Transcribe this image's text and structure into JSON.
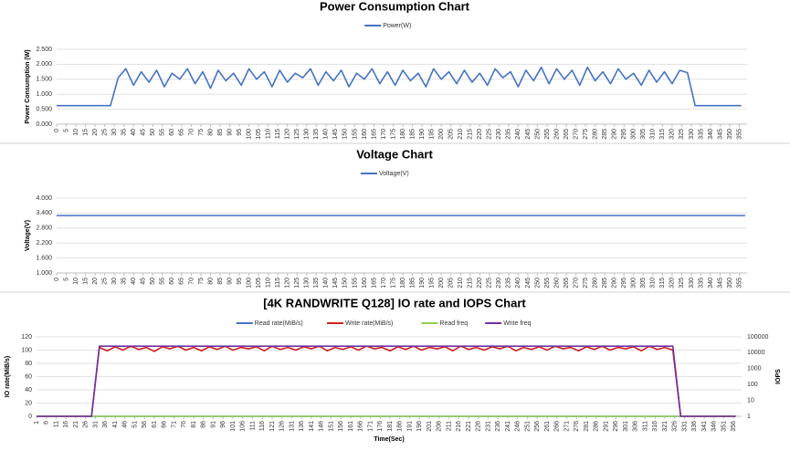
{
  "chart_data": [
    {
      "type": "line",
      "title": "Power Consumption Chart",
      "y_label": "Power Consumption (W)",
      "legend": "top",
      "grid": true,
      "xlim": [
        0,
        359
      ],
      "ylim": [
        0,
        2.5
      ],
      "xticks": [
        0,
        5,
        10,
        15,
        20,
        25,
        30,
        35,
        40,
        45,
        50,
        55,
        60,
        65,
        70,
        75,
        80,
        85,
        90,
        95,
        100,
        105,
        110,
        115,
        120,
        125,
        130,
        135,
        140,
        145,
        150,
        155,
        160,
        165,
        170,
        175,
        180,
        185,
        190,
        195,
        200,
        205,
        210,
        215,
        220,
        225,
        230,
        235,
        240,
        245,
        250,
        255,
        260,
        265,
        270,
        275,
        280,
        285,
        290,
        295,
        300,
        305,
        310,
        315,
        320,
        325,
        330,
        335,
        340,
        345,
        350,
        355
      ],
      "yticks": [
        {
          "value": 0,
          "label": "0.000"
        },
        {
          "value": 0.5,
          "label": "0.500"
        },
        {
          "value": 1,
          "label": "1.000"
        },
        {
          "value": 1.5,
          "label": "1.500"
        },
        {
          "value": 2,
          "label": "2.000"
        },
        {
          "value": 2.5,
          "label": "2.500"
        }
      ],
      "x": [
        0,
        4,
        8,
        12,
        16,
        20,
        24,
        28,
        32,
        36,
        40,
        44,
        48,
        52,
        56,
        60,
        64,
        68,
        72,
        76,
        80,
        84,
        88,
        92,
        96,
        100,
        104,
        108,
        112,
        116,
        120,
        124,
        128,
        132,
        136,
        140,
        144,
        148,
        152,
        156,
        160,
        164,
        168,
        172,
        176,
        180,
        184,
        188,
        192,
        196,
        200,
        204,
        208,
        212,
        216,
        220,
        224,
        228,
        232,
        236,
        240,
        244,
        248,
        252,
        256,
        260,
        264,
        268,
        272,
        276,
        280,
        284,
        288,
        292,
        296,
        300,
        304,
        308,
        312,
        316,
        320,
        324,
        328,
        332,
        336,
        340,
        344,
        348,
        352,
        356
      ],
      "series": [
        {
          "name": "Power(W)",
          "color": "#4472c4",
          "values": [
            0.62,
            0.62,
            0.62,
            0.62,
            0.62,
            0.62,
            0.62,
            0.62,
            1.55,
            1.85,
            1.3,
            1.75,
            1.4,
            1.8,
            1.25,
            1.7,
            1.5,
            1.85,
            1.35,
            1.75,
            1.2,
            1.8,
            1.45,
            1.7,
            1.3,
            1.85,
            1.5,
            1.75,
            1.25,
            1.8,
            1.4,
            1.7,
            1.55,
            1.85,
            1.3,
            1.75,
            1.45,
            1.8,
            1.25,
            1.7,
            1.5,
            1.85,
            1.35,
            1.75,
            1.3,
            1.8,
            1.45,
            1.7,
            1.25,
            1.85,
            1.5,
            1.75,
            1.35,
            1.8,
            1.4,
            1.7,
            1.3,
            1.85,
            1.55,
            1.75,
            1.25,
            1.8,
            1.45,
            1.9,
            1.35,
            1.85,
            1.5,
            1.8,
            1.3,
            1.9,
            1.45,
            1.75,
            1.35,
            1.85,
            1.5,
            1.7,
            1.3,
            1.8,
            1.4,
            1.75,
            1.35,
            1.8,
            1.72,
            0.62,
            0.62,
            0.62,
            0.62,
            0.62,
            0.62,
            0.62
          ]
        }
      ]
    },
    {
      "type": "line",
      "title": "Voltage Chart",
      "y_label": "Voltage(V)",
      "legend": "top",
      "grid": true,
      "xlim": [
        0,
        359
      ],
      "ylim": [
        1,
        4
      ],
      "xticks": [
        0,
        5,
        10,
        15,
        20,
        25,
        30,
        35,
        40,
        45,
        50,
        55,
        60,
        65,
        70,
        75,
        80,
        85,
        90,
        95,
        100,
        105,
        110,
        115,
        120,
        125,
        130,
        135,
        140,
        145,
        150,
        155,
        160,
        165,
        170,
        175,
        180,
        185,
        190,
        195,
        200,
        205,
        210,
        215,
        220,
        225,
        230,
        235,
        240,
        245,
        250,
        255,
        260,
        265,
        270,
        275,
        280,
        285,
        290,
        295,
        300,
        305,
        310,
        315,
        320,
        325,
        330,
        335,
        340,
        345,
        350,
        355
      ],
      "yticks": [
        {
          "value": 1,
          "label": "1.000"
        },
        {
          "value": 1.6,
          "label": "1.600"
        },
        {
          "value": 2.2,
          "label": "2.200"
        },
        {
          "value": 2.8,
          "label": "2.800"
        },
        {
          "value": 3.4,
          "label": "3.400"
        },
        {
          "value": 4,
          "label": "4.000"
        }
      ],
      "x": [
        0,
        120,
        240,
        358
      ],
      "series": [
        {
          "name": "Voltage(V)",
          "color": "#4472c4",
          "values": [
            3.3,
            3.3,
            3.3,
            3.3
          ]
        }
      ]
    },
    {
      "type": "line",
      "title": "[4K RANDWRITE Q128] IO rate and IOPS Chart",
      "x_label": "Time(Sec)",
      "y_label": "IO rate(MiB/s)",
      "y2_label": "IOPS",
      "legend": "top",
      "grid": true,
      "y2_scale": "log",
      "xlim": [
        1,
        360
      ],
      "ylim": [
        0,
        120
      ],
      "y2lim": [
        1,
        100000
      ],
      "xticks": [
        1,
        6,
        11,
        16,
        21,
        26,
        31,
        36,
        41,
        46,
        51,
        56,
        61,
        66,
        71,
        76,
        81,
        86,
        91,
        96,
        101,
        106,
        111,
        116,
        121,
        126,
        131,
        136,
        141,
        146,
        151,
        156,
        161,
        166,
        171,
        176,
        181,
        186,
        191,
        196,
        201,
        206,
        211,
        216,
        221,
        226,
        231,
        236,
        241,
        246,
        251,
        256,
        261,
        266,
        271,
        276,
        281,
        286,
        291,
        296,
        301,
        306,
        311,
        316,
        321,
        326,
        331,
        336,
        341,
        346,
        351,
        356
      ],
      "yticks": [
        0,
        20,
        40,
        60,
        80,
        100,
        120
      ],
      "y2ticks": [
        1,
        10,
        100,
        1000,
        10000,
        100000
      ],
      "x": [
        1,
        5,
        9,
        13,
        17,
        21,
        25,
        29,
        33,
        37,
        41,
        45,
        49,
        53,
        57,
        61,
        65,
        69,
        73,
        77,
        81,
        85,
        89,
        93,
        97,
        101,
        105,
        109,
        113,
        117,
        121,
        125,
        129,
        133,
        137,
        141,
        145,
        149,
        153,
        157,
        161,
        165,
        169,
        173,
        177,
        181,
        185,
        189,
        193,
        197,
        201,
        205,
        209,
        213,
        217,
        221,
        225,
        229,
        233,
        237,
        241,
        245,
        249,
        253,
        257,
        261,
        265,
        269,
        273,
        277,
        281,
        285,
        289,
        293,
        297,
        301,
        305,
        309,
        313,
        317,
        321,
        325,
        329,
        333,
        337,
        341,
        345,
        349,
        353,
        357
      ],
      "series": [
        {
          "name": "Read rate(MiB/s)",
          "color": "#4472c4",
          "values": [
            0,
            0,
            0,
            0,
            0,
            0,
            0,
            0,
            0,
            0,
            0,
            0,
            0,
            0,
            0,
            0,
            0,
            0,
            0,
            0,
            0,
            0,
            0,
            0,
            0,
            0,
            0,
            0,
            0,
            0,
            0,
            0,
            0,
            0,
            0,
            0,
            0,
            0,
            0,
            0,
            0,
            0,
            0,
            0,
            0,
            0,
            0,
            0,
            0,
            0,
            0,
            0,
            0,
            0,
            0,
            0,
            0,
            0,
            0,
            0,
            0,
            0,
            0,
            0,
            0,
            0,
            0,
            0,
            0,
            0,
            0,
            0,
            0,
            0,
            0,
            0,
            0,
            0,
            0,
            0,
            0,
            0,
            0,
            0,
            0,
            0,
            0,
            0,
            0,
            0
          ]
        },
        {
          "name": "Write rate(MiB/s)",
          "color": "#d02020",
          "values": [
            0,
            0,
            0,
            0,
            0,
            0,
            0,
            0,
            104,
            99,
            105,
            100,
            106,
            101,
            104,
            98,
            105,
            102,
            106,
            100,
            104,
            99,
            105,
            101,
            106,
            100,
            104,
            102,
            105,
            99,
            106,
            101,
            104,
            100,
            105,
            102,
            106,
            99,
            104,
            101,
            105,
            100,
            106,
            102,
            104,
            99,
            105,
            101,
            106,
            100,
            104,
            102,
            105,
            99,
            106,
            101,
            104,
            100,
            105,
            102,
            106,
            99,
            104,
            101,
            105,
            100,
            106,
            102,
            104,
            99,
            105,
            101,
            106,
            100,
            104,
            102,
            105,
            99,
            106,
            101,
            104,
            100,
            0,
            0,
            0,
            0,
            0,
            0,
            0,
            0
          ]
        },
        {
          "name": "Read freq",
          "color": "#92d050",
          "axis": "y2",
          "values": [
            1,
            1,
            1,
            1,
            1,
            1,
            1,
            1,
            1,
            1,
            1,
            1,
            1,
            1,
            1,
            1,
            1,
            1,
            1,
            1,
            1,
            1,
            1,
            1,
            1,
            1,
            1,
            1,
            1,
            1,
            1,
            1,
            1,
            1,
            1,
            1,
            1,
            1,
            1,
            1,
            1,
            1,
            1,
            1,
            1,
            1,
            1,
            1,
            1,
            1,
            1,
            1,
            1,
            1,
            1,
            1,
            1,
            1,
            1,
            1,
            1,
            1,
            1,
            1,
            1,
            1,
            1,
            1,
            1,
            1,
            1,
            1,
            1,
            1,
            1,
            1,
            1,
            1,
            1,
            1,
            1,
            1,
            1,
            1,
            1,
            1,
            1,
            1,
            1,
            1
          ]
        },
        {
          "name": "Write freq",
          "color": "#7030a0",
          "axis": "y2",
          "values": [
            1,
            1,
            1,
            1,
            1,
            1,
            1,
            1,
            26000,
            26000,
            26000,
            26000,
            26000,
            26000,
            26000,
            26000,
            26000,
            26000,
            26000,
            26000,
            26000,
            26000,
            26000,
            26000,
            26000,
            26000,
            26000,
            26000,
            26000,
            26000,
            26000,
            26000,
            26000,
            26000,
            26000,
            26000,
            26000,
            26000,
            26000,
            26000,
            26000,
            26000,
            26000,
            26000,
            26000,
            26000,
            26000,
            26000,
            26000,
            26000,
            26000,
            26000,
            26000,
            26000,
            26000,
            26000,
            26000,
            26000,
            26000,
            26000,
            26000,
            26000,
            26000,
            26000,
            26000,
            26000,
            26000,
            26000,
            26000,
            26000,
            26000,
            26000,
            26000,
            26000,
            26000,
            26000,
            26000,
            26000,
            26000,
            26000,
            26000,
            26000,
            1,
            1,
            1,
            1,
            1,
            1,
            1,
            1
          ]
        }
      ]
    }
  ]
}
